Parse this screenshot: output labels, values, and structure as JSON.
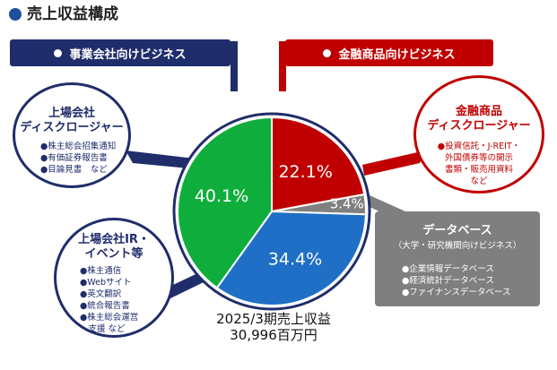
{
  "page_title": "売上収益構成",
  "header_left": {
    "label": "事業会社向けビジネス"
  },
  "header_right": {
    "label": "金融商品向けビジネス"
  },
  "callouts": {
    "listed_disclosure": {
      "title_lines": [
        "上場会社",
        "ディスクロージャー"
      ],
      "items": [
        "●株主総会招集通知",
        "●有価証券報告書",
        "●目論見書　など"
      ]
    },
    "ir_events": {
      "title_lines": [
        "上場会社IR・",
        "イベント等"
      ],
      "items": [
        "●株主通信",
        "●Webサイト",
        "●英文翻訳",
        "●統合報告書",
        "●株主総会運営",
        "　支援 など"
      ]
    },
    "financial_disclosure": {
      "title_lines": [
        "金融商品",
        "ディスクロージャー"
      ],
      "items": [
        "●投資信託・J-REIT・",
        "外国債券等の開示",
        "書類・販売用資料",
        "など"
      ]
    },
    "database": {
      "title": "データベース",
      "subtitle": "（大学・研究機関向けビジネス）",
      "items": [
        "●企業情報データベース",
        "●経済統計データベース",
        "●ファイナンスデータベース"
      ]
    }
  },
  "total_label": {
    "line1": "2025/3期売上収益",
    "line2": "30,996百万円"
  },
  "colors": {
    "navy": "#1f2d6b",
    "red": "#c00000",
    "green": "#0fae3c",
    "blue": "#1f6fc6",
    "gray": "#7f7f7f",
    "title_dot": "#1f4e9a"
  },
  "chart_data": {
    "type": "pie",
    "title": "",
    "slices": [
      {
        "label": "22.1%",
        "value": 22.1,
        "color": "#c00000"
      },
      {
        "label": "3.4%",
        "value": 3.4,
        "color": "#808080"
      },
      {
        "label": "34.4%",
        "value": 34.4,
        "color": "#1f6fc6"
      },
      {
        "label": "40.1%",
        "value": 40.1,
        "color": "#0fae3c"
      }
    ]
  }
}
